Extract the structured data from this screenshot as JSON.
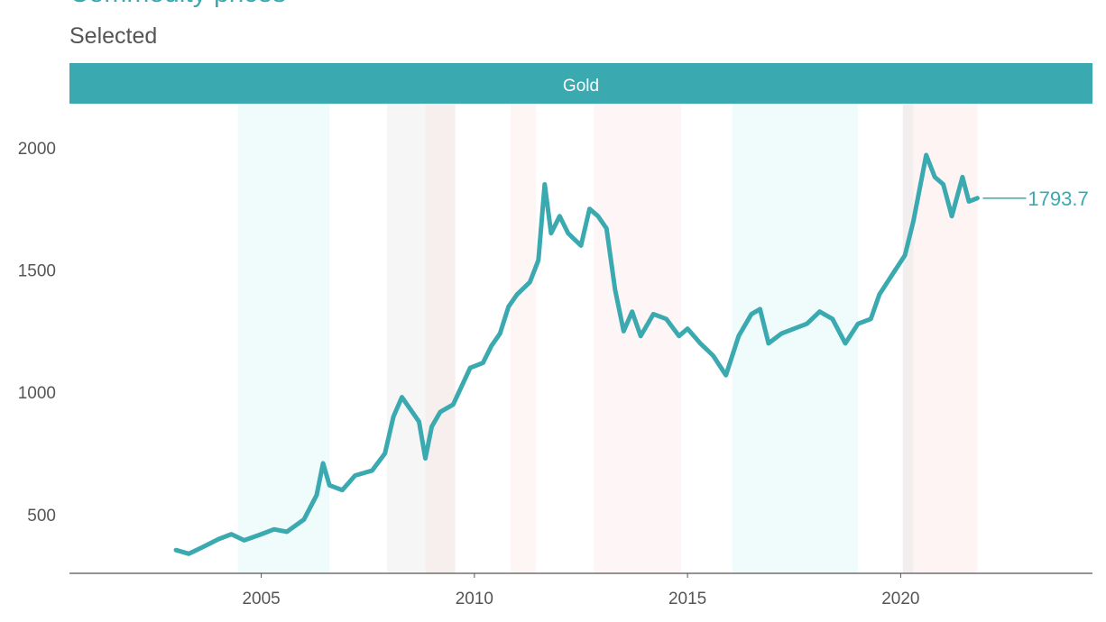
{
  "chart_data": {
    "type": "line",
    "title": "Commodity prices",
    "subtitle": "Selected",
    "panel_label": "Gold",
    "series": [
      {
        "name": "Gold",
        "color": "#3aa9b0",
        "last_value_label": "1793.7",
        "points": [
          [
            2003.0,
            355
          ],
          [
            2003.3,
            340
          ],
          [
            2003.6,
            365
          ],
          [
            2004.0,
            400
          ],
          [
            2004.3,
            420
          ],
          [
            2004.6,
            395
          ],
          [
            2005.0,
            420
          ],
          [
            2005.3,
            440
          ],
          [
            2005.6,
            430
          ],
          [
            2006.0,
            480
          ],
          [
            2006.3,
            580
          ],
          [
            2006.45,
            710
          ],
          [
            2006.6,
            620
          ],
          [
            2006.9,
            600
          ],
          [
            2007.2,
            660
          ],
          [
            2007.6,
            680
          ],
          [
            2007.9,
            750
          ],
          [
            2008.1,
            900
          ],
          [
            2008.3,
            980
          ],
          [
            2008.5,
            930
          ],
          [
            2008.7,
            880
          ],
          [
            2008.85,
            730
          ],
          [
            2009.0,
            860
          ],
          [
            2009.2,
            920
          ],
          [
            2009.5,
            950
          ],
          [
            2009.9,
            1100
          ],
          [
            2010.2,
            1120
          ],
          [
            2010.4,
            1190
          ],
          [
            2010.6,
            1240
          ],
          [
            2010.8,
            1350
          ],
          [
            2011.0,
            1400
          ],
          [
            2011.3,
            1450
          ],
          [
            2011.5,
            1540
          ],
          [
            2011.65,
            1850
          ],
          [
            2011.8,
            1650
          ],
          [
            2012.0,
            1720
          ],
          [
            2012.2,
            1650
          ],
          [
            2012.5,
            1600
          ],
          [
            2012.7,
            1750
          ],
          [
            2012.9,
            1720
          ],
          [
            2013.1,
            1670
          ],
          [
            2013.3,
            1420
          ],
          [
            2013.5,
            1250
          ],
          [
            2013.7,
            1330
          ],
          [
            2013.9,
            1230
          ],
          [
            2014.2,
            1320
          ],
          [
            2014.5,
            1300
          ],
          [
            2014.8,
            1230
          ],
          [
            2015.0,
            1260
          ],
          [
            2015.3,
            1200
          ],
          [
            2015.6,
            1150
          ],
          [
            2015.9,
            1070
          ],
          [
            2016.2,
            1230
          ],
          [
            2016.5,
            1320
          ],
          [
            2016.7,
            1340
          ],
          [
            2016.9,
            1200
          ],
          [
            2017.2,
            1240
          ],
          [
            2017.5,
            1260
          ],
          [
            2017.8,
            1280
          ],
          [
            2018.1,
            1330
          ],
          [
            2018.4,
            1300
          ],
          [
            2018.7,
            1200
          ],
          [
            2019.0,
            1280
          ],
          [
            2019.3,
            1300
          ],
          [
            2019.5,
            1400
          ],
          [
            2019.8,
            1480
          ],
          [
            2020.1,
            1560
          ],
          [
            2020.3,
            1700
          ],
          [
            2020.6,
            1970
          ],
          [
            2020.8,
            1880
          ],
          [
            2021.0,
            1850
          ],
          [
            2021.2,
            1720
          ],
          [
            2021.45,
            1880
          ],
          [
            2021.6,
            1780
          ],
          [
            2021.8,
            1793.7
          ]
        ]
      }
    ],
    "x_ticks": [
      2005,
      2010,
      2015,
      2020
    ],
    "x_tick_labels": [
      "2005",
      "2010",
      "2015",
      "2020"
    ],
    "xlim": [
      2000.5,
      2024.5
    ],
    "y_ticks": [
      500,
      1000,
      1500,
      2000
    ],
    "y_tick_labels": [
      "500",
      "1000",
      "1500",
      "2000"
    ],
    "ylim": [
      260,
      2180
    ],
    "shaded_periods": [
      {
        "start": 2004.45,
        "end": 2006.6,
        "color": "#f0fbfb"
      },
      {
        "start": 2007.95,
        "end": 2008.85,
        "color": "#f6f6f6"
      },
      {
        "start": 2008.85,
        "end": 2009.55,
        "color": "#f7eeee"
      },
      {
        "start": 2010.85,
        "end": 2011.45,
        "color": "#fef5f5"
      },
      {
        "start": 2012.8,
        "end": 2014.85,
        "color": "#fef6f6"
      },
      {
        "start": 2016.05,
        "end": 2019.0,
        "color": "#f0fbfb"
      },
      {
        "start": 2020.05,
        "end": 2020.3,
        "color": "#f2eeee"
      },
      {
        "start": 2020.3,
        "end": 2021.8,
        "color": "#fef4f4"
      }
    ],
    "grid": false,
    "legend": "none"
  }
}
